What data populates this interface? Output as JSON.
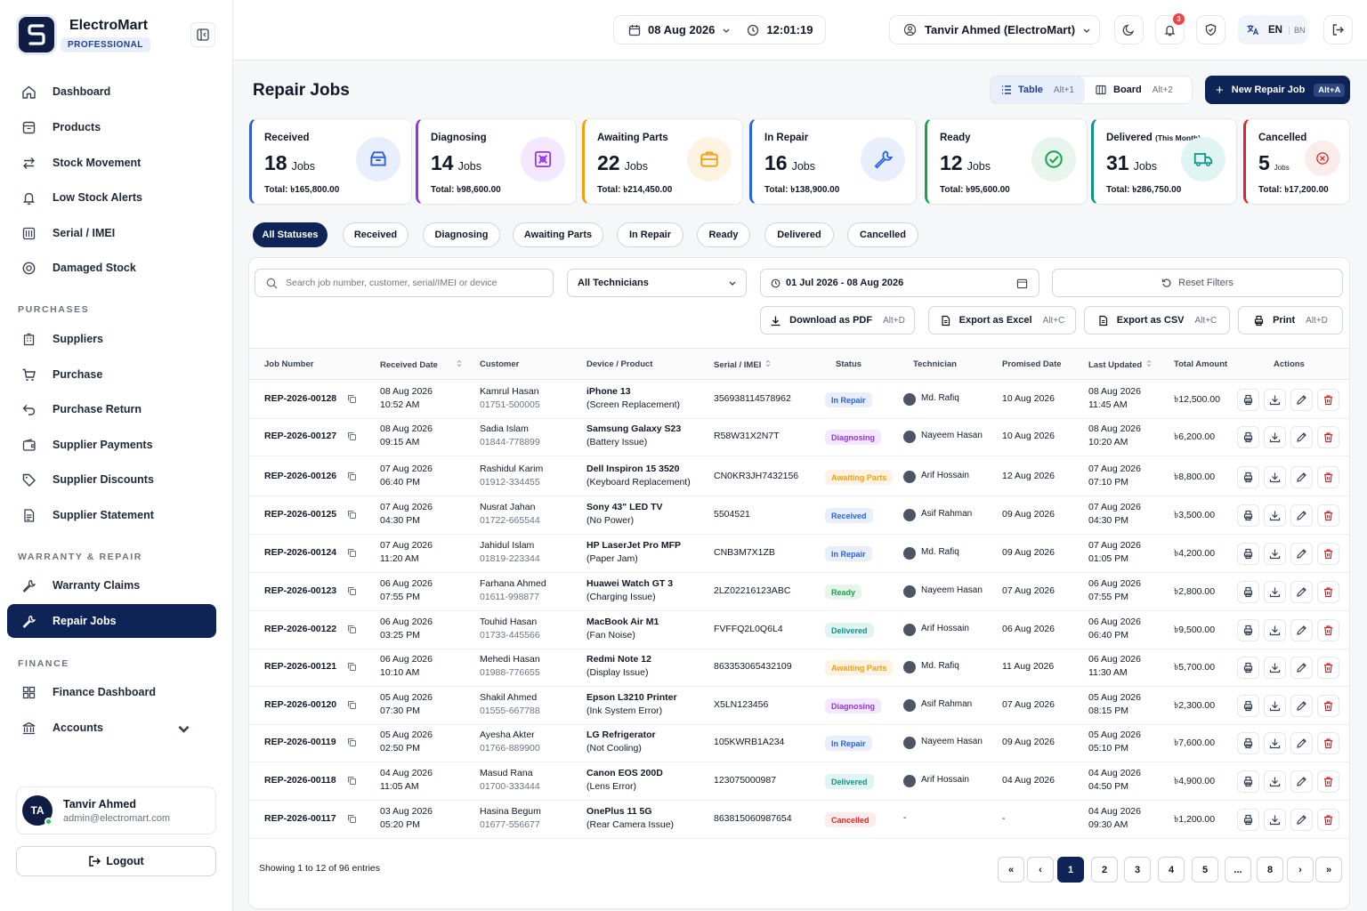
{
  "brand": {
    "name": "ElectroMart",
    "tier": "PROFESSIONAL"
  },
  "nav": {
    "main": [
      {
        "label": "Dashboard",
        "icon": "home-icon"
      },
      {
        "label": "Products",
        "icon": "box-icon"
      },
      {
        "label": "Stock Movement",
        "icon": "arrows-icon"
      },
      {
        "label": "Low Stock Alerts",
        "icon": "bell-icon"
      },
      {
        "label": "Serial / IMEI",
        "icon": "barcode-icon"
      },
      {
        "label": "Damaged Stock",
        "icon": "alert-icon"
      }
    ],
    "sections": {
      "purchases": "PURCHASES",
      "warranty": "WARRANTY & REPAIR",
      "finance": "FINANCE"
    },
    "purchases": [
      {
        "label": "Suppliers"
      },
      {
        "label": "Purchase"
      },
      {
        "label": "Purchase Return"
      },
      {
        "label": "Supplier Payments"
      },
      {
        "label": "Supplier Discounts"
      },
      {
        "label": "Supplier Statement"
      }
    ],
    "warranty": [
      {
        "label": "Warranty Claims"
      },
      {
        "label": "Repair Jobs"
      }
    ],
    "finance": [
      {
        "label": "Finance Dashboard"
      },
      {
        "label": "Accounts"
      }
    ]
  },
  "user": {
    "initials": "TA",
    "name": "Tanvir Ahmed",
    "email": "admin@electromart.com",
    "logout": "Logout"
  },
  "topbar": {
    "date": "08 Aug 2026",
    "time": "12:01:19",
    "account": "Tanvir Ahmed (ElectroMart)",
    "notif_count": "3",
    "lang_en": "EN",
    "lang_bn": "BN"
  },
  "page": {
    "title": "Repair Jobs",
    "view_table": "Table",
    "view_table_kbd": "Alt+1",
    "view_board": "Board",
    "view_board_kbd": "Alt+2",
    "new_btn": "New Repair Job",
    "new_btn_kbd": "Alt+A"
  },
  "stats": [
    {
      "label": "Received",
      "extra": "",
      "count": "18",
      "unit": "Jobs",
      "total": "Total: ৳165,800.00",
      "color": "#2f5bd3",
      "bg": "#e8eefc"
    },
    {
      "label": "Diagnosing",
      "extra": "",
      "count": "14",
      "unit": "Jobs",
      "total": "Total: ৳98,600.00",
      "color": "#9333ea",
      "bg": "#f3e8ff"
    },
    {
      "label": "Awaiting Parts",
      "extra": "",
      "count": "22",
      "unit": "Jobs",
      "total": "Total: ৳214,450.00",
      "color": "#f59e0b",
      "bg": "#fef3e2"
    },
    {
      "label": "In Repair",
      "extra": "",
      "count": "16",
      "unit": "Jobs",
      "total": "Total: ৳138,900.00",
      "color": "#2563eb",
      "bg": "#e8eefc"
    },
    {
      "label": "Ready",
      "extra": "",
      "count": "12",
      "unit": "Jobs",
      "total": "Total: ৳95,600.00",
      "color": "#16a34a",
      "bg": "#e6f6ec"
    },
    {
      "label": "Delivered",
      "extra": "(This Month)",
      "count": "31",
      "unit": "Jobs",
      "total": "Total: ৳286,750.00",
      "color": "#0d9488",
      "bg": "#e0f5f3"
    },
    {
      "label": "Cancelled",
      "extra": "",
      "count": "5",
      "unit": "Jobs",
      "total": "Total: ৳17,200.00",
      "color": "#dc2626",
      "bg": "#fdecec"
    }
  ],
  "chips": [
    "All Statuses",
    "Received",
    "Diagnosing",
    "Awaiting Parts",
    "In Repair",
    "Ready",
    "Delivered",
    "Cancelled"
  ],
  "filters": {
    "search_placeholder": "Search job number, customer, serial/IMEI or device",
    "technician": "All Technicians",
    "date_range": "01 Jul 2026 - 08 Aug 2026",
    "reset": "Reset Filters"
  },
  "exports": [
    {
      "label": "Download as PDF",
      "kbd": "Alt+D"
    },
    {
      "label": "Export as Excel",
      "kbd": "Alt+C"
    },
    {
      "label": "Export as CSV",
      "kbd": "Alt+C"
    },
    {
      "label": "Print",
      "kbd": "Alt+D"
    }
  ],
  "columns": [
    "Job Number",
    "Received Date",
    "Customer",
    "Device / Product",
    "Serial / IMEI",
    "Status",
    "Technician",
    "Promised Date",
    "Last Updated",
    "Total Amount",
    "Actions"
  ],
  "rows": [
    {
      "job": "REP-2026-00128",
      "rdate": "08 Aug 2026",
      "rtime": "10:52 AM",
      "cust": "Kamrul Hasan",
      "phone": "01751-500005",
      "dev": "iPhone 13",
      "issue": "(Screen Replacement)",
      "serial": "356938114578962",
      "status": "In Repair",
      "tech": "Md. Rafiq",
      "promised": "10 Aug 2026",
      "udate": "08 Aug 2026",
      "utime": "11:45 AM",
      "amount": "৳12,500.00"
    },
    {
      "job": "REP-2026-00127",
      "rdate": "08 Aug 2026",
      "rtime": "09:15 AM",
      "cust": "Sadia Islam",
      "phone": "01844-778899",
      "dev": "Samsung Galaxy S23",
      "issue": "(Battery Issue)",
      "serial": "R58W31X2N7T",
      "status": "Diagnosing",
      "tech": "Nayeem Hasan",
      "promised": "10 Aug 2026",
      "udate": "08 Aug 2026",
      "utime": "10:20 AM",
      "amount": "৳6,200.00"
    },
    {
      "job": "REP-2026-00126",
      "rdate": "07 Aug 2026",
      "rtime": "06:40 PM",
      "cust": "Rashidul Karim",
      "phone": "01912-334455",
      "dev": "Dell Inspiron 15 3520",
      "issue": "(Keyboard Replacement)",
      "serial": "CN0KR3JH7432156",
      "status": "Awaiting Parts",
      "tech": "Arif Hossain",
      "promised": "12 Aug 2026",
      "udate": "07 Aug 2026",
      "utime": "07:10 PM",
      "amount": "৳8,800.00"
    },
    {
      "job": "REP-2026-00125",
      "rdate": "07 Aug 2026",
      "rtime": "04:30 PM",
      "cust": "Nusrat Jahan",
      "phone": "01722-665544",
      "dev": "Sony 43\" LED TV",
      "issue": "(No Power)",
      "serial": "5504521",
      "status": "Received",
      "tech": "Asif Rahman",
      "promised": "09 Aug 2026",
      "udate": "07 Aug 2026",
      "utime": "04:30 PM",
      "amount": "৳3,500.00"
    },
    {
      "job": "REP-2026-00124",
      "rdate": "07 Aug 2026",
      "rtime": "11:20 AM",
      "cust": "Jahidul Islam",
      "phone": "01819-223344",
      "dev": "HP LaserJet Pro MFP",
      "issue": "(Paper Jam)",
      "serial": "CNB3M7X1ZB",
      "status": "In Repair",
      "tech": "Md. Rafiq",
      "promised": "09 Aug 2026",
      "udate": "07 Aug 2026",
      "utime": "01:05 PM",
      "amount": "৳4,200.00"
    },
    {
      "job": "REP-2026-00123",
      "rdate": "06 Aug 2026",
      "rtime": "07:55 PM",
      "cust": "Farhana Ahmed",
      "phone": "01611-998877",
      "dev": "Huawei Watch GT 3",
      "issue": "(Charging Issue)",
      "serial": "2LZ02216123ABC",
      "status": "Ready",
      "tech": "Nayeem Hasan",
      "promised": "07 Aug 2026",
      "udate": "06 Aug 2026",
      "utime": "07:55 PM",
      "amount": "৳2,800.00"
    },
    {
      "job": "REP-2026-00122",
      "rdate": "06 Aug 2026",
      "rtime": "03:25 PM",
      "cust": "Touhid Hasan",
      "phone": "01733-445566",
      "dev": "MacBook Air M1",
      "issue": "(Fan Noise)",
      "serial": "FVFFQ2L0Q6L4",
      "status": "Delivered",
      "tech": "Arif Hossain",
      "promised": "06 Aug 2026",
      "udate": "06 Aug 2026",
      "utime": "06:40 PM",
      "amount": "৳9,500.00"
    },
    {
      "job": "REP-2026-00121",
      "rdate": "06 Aug 2026",
      "rtime": "10:10 AM",
      "cust": "Mehedi Hasan",
      "phone": "01988-776655",
      "dev": "Redmi Note 12",
      "issue": "(Display Issue)",
      "serial": "863353065432109",
      "status": "Awaiting Parts",
      "tech": "Md. Rafiq",
      "promised": "11 Aug 2026",
      "udate": "06 Aug 2026",
      "utime": "11:30 AM",
      "amount": "৳5,700.00"
    },
    {
      "job": "REP-2026-00120",
      "rdate": "05 Aug 2026",
      "rtime": "07:30 PM",
      "cust": "Shakil Ahmed",
      "phone": "01555-667788",
      "dev": "Epson L3210 Printer",
      "issue": "(Ink System Error)",
      "serial": "X5LN123456",
      "status": "Diagnosing",
      "tech": "Asif Rahman",
      "promised": "07 Aug 2026",
      "udate": "05 Aug 2026",
      "utime": "08:15 PM",
      "amount": "৳2,300.00"
    },
    {
      "job": "REP-2026-00119",
      "rdate": "05 Aug 2026",
      "rtime": "02:50 PM",
      "cust": "Ayesha Akter",
      "phone": "01766-889900",
      "dev": "LG Refrigerator",
      "issue": "(Not Cooling)",
      "serial": "105KWRB1A234",
      "status": "In Repair",
      "tech": "Nayeem Hasan",
      "promised": "09 Aug 2026",
      "udate": "05 Aug 2026",
      "utime": "05:10 PM",
      "amount": "৳7,600.00"
    },
    {
      "job": "REP-2026-00118",
      "rdate": "04 Aug 2026",
      "rtime": "11:05 AM",
      "cust": "Masud Rana",
      "phone": "01700-333444",
      "dev": "Canon EOS 200D",
      "issue": "(Lens Error)",
      "serial": "123075000987",
      "status": "Delivered",
      "tech": "Arif Hossain",
      "promised": "04 Aug 2026",
      "udate": "04 Aug 2026",
      "utime": "04:50 PM",
      "amount": "৳4,900.00"
    },
    {
      "job": "REP-2026-00117",
      "rdate": "03 Aug 2026",
      "rtime": "05:20 PM",
      "cust": "Hasina Begum",
      "phone": "01677-556677",
      "dev": "OnePlus 11 5G",
      "issue": "(Rear Camera Issue)",
      "serial": "863815060987654",
      "status": "Cancelled",
      "tech": "-",
      "promised": "-",
      "udate": "04 Aug 2026",
      "utime": "09:30 AM",
      "amount": "৳1,200.00"
    }
  ],
  "status_colors": {
    "In Repair": [
      "#e8eefc",
      "#2563eb"
    ],
    "Diagnosing": [
      "#f3e8ff",
      "#9333ea"
    ],
    "Awaiting Parts": [
      "#fef3e2",
      "#f59e0b"
    ],
    "Received": [
      "#e8eefc",
      "#2563eb"
    ],
    "Ready": [
      "#e6f6ec",
      "#16a34a"
    ],
    "Delivered": [
      "#e0f5f3",
      "#0d9488"
    ],
    "Cancelled": [
      "#fdecec",
      "#dc2626"
    ]
  },
  "pagination": {
    "info": "Showing 1 to 12 of 96 entries",
    "first": "«",
    "prev": "‹",
    "pages": [
      "1",
      "2",
      "3",
      "4",
      "5",
      "...",
      "8"
    ],
    "next": "›",
    "last": "»"
  }
}
